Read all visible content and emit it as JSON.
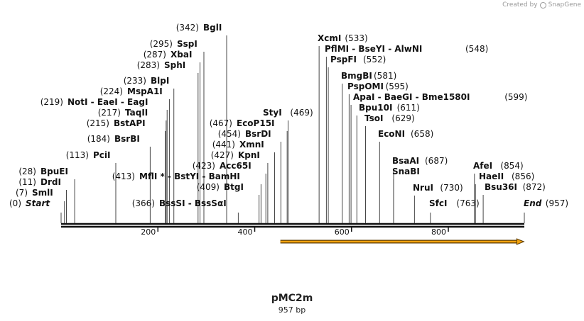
{
  "credit": {
    "prefix": "Created by",
    "brand": "SnapGene"
  },
  "plasmid": {
    "name": "pMC2m",
    "size_label": "957 bp",
    "length": 957
  },
  "axis": {
    "ticks": [
      {
        "pos": 200,
        "label": "200"
      },
      {
        "pos": 400,
        "label": "400"
      },
      {
        "pos": 600,
        "label": "600"
      },
      {
        "pos": 800,
        "label": "800"
      }
    ]
  },
  "feature": {
    "name": "orf-arrow",
    "start": 453,
    "end": 956,
    "color": "#f3a30e"
  },
  "labels": [
    {
      "text": "Start",
      "pos_text": "(0)",
      "site": 0,
      "special": true
    },
    {
      "text": "SmlI",
      "pos_text": "(7)",
      "site": 7
    },
    {
      "text": "DrdI",
      "pos_text": "(11)",
      "site": 11
    },
    {
      "text": "BpuEI",
      "pos_text": "(28)",
      "site": 28
    },
    {
      "text": "PciI",
      "pos_text": "(113)",
      "site": 113
    },
    {
      "text": "BsrBI",
      "pos_text": "(184)",
      "site": 184
    },
    {
      "text": "BstAPI",
      "pos_text": "(215)",
      "site": 215
    },
    {
      "text": "TaqII",
      "pos_text": "(217)",
      "site": 217
    },
    {
      "text": "NotI  -  EaeI  -  EagI",
      "pos_text": "(219)",
      "site": 219
    },
    {
      "text": "MspA1I",
      "pos_text": "(224)",
      "site": 224
    },
    {
      "text": "BlpI",
      "pos_text": "(233)",
      "site": 233
    },
    {
      "text": "SphI",
      "pos_text": "(283)",
      "site": 283
    },
    {
      "text": "XbaI",
      "pos_text": "(287)",
      "site": 287
    },
    {
      "text": "SspI",
      "pos_text": "(295)",
      "site": 295
    },
    {
      "text": "BglI",
      "pos_text": "(342)",
      "site": 342
    },
    {
      "text": "BssSI  -  BssSαI",
      "pos_text": "(366)",
      "site": 366
    },
    {
      "text": "MflI *  -  BstYI  -  BamHI",
      "pos_text": "(413)",
      "site": 413
    },
    {
      "text": "BtgI",
      "pos_text": "(409)",
      "site": 409
    },
    {
      "text": "Acc65I",
      "pos_text": "(423)",
      "site": 423
    },
    {
      "text": "KpnI",
      "pos_text": "(427)",
      "site": 427
    },
    {
      "text": "XmnI",
      "pos_text": "(441)",
      "site": 441
    },
    {
      "text": "BsrDI",
      "pos_text": "(454)",
      "site": 454
    },
    {
      "text": "EcoP15I",
      "pos_text": "(467)",
      "site": 467
    },
    {
      "text": "StyI",
      "pos_text": "(469)",
      "site": 469
    },
    {
      "text": "XcmI",
      "pos_text": "(533)",
      "site": 533
    },
    {
      "text": "PflMI  -  BseYI  -  AlwNI",
      "pos_text": "(548)",
      "site": 548
    },
    {
      "text": "PspFI",
      "pos_text": "(552)",
      "site": 552
    },
    {
      "text": "BmgBI",
      "pos_text": "(581)",
      "site": 581
    },
    {
      "text": "PspOMI",
      "pos_text": "(595)",
      "site": 595
    },
    {
      "text": "ApaI  -  BaeGI  -  Bme1580I",
      "pos_text": "(599)",
      "site": 599
    },
    {
      "text": "Bpu10I",
      "pos_text": "(611)",
      "site": 611
    },
    {
      "text": "TsoI",
      "pos_text": "(629)",
      "site": 629
    },
    {
      "text": "EcoNI",
      "pos_text": "(658)",
      "site": 658
    },
    {
      "text": "BsaAI",
      "pos_text": "(687)",
      "site": 687
    },
    {
      "text": "SnaBI",
      "pos_text": "",
      "site": 687
    },
    {
      "text": "NruI",
      "pos_text": "(730)",
      "site": 730
    },
    {
      "text": "SfcI",
      "pos_text": "(763)",
      "site": 763
    },
    {
      "text": "AfeI",
      "pos_text": "(854)",
      "site": 854
    },
    {
      "text": "HaeII",
      "pos_text": "(856)",
      "site": 856
    },
    {
      "text": "Bsu36I",
      "pos_text": "(872)",
      "site": 872
    },
    {
      "text": "End",
      "pos_text": "(957)",
      "site": 957,
      "special": true
    }
  ]
}
